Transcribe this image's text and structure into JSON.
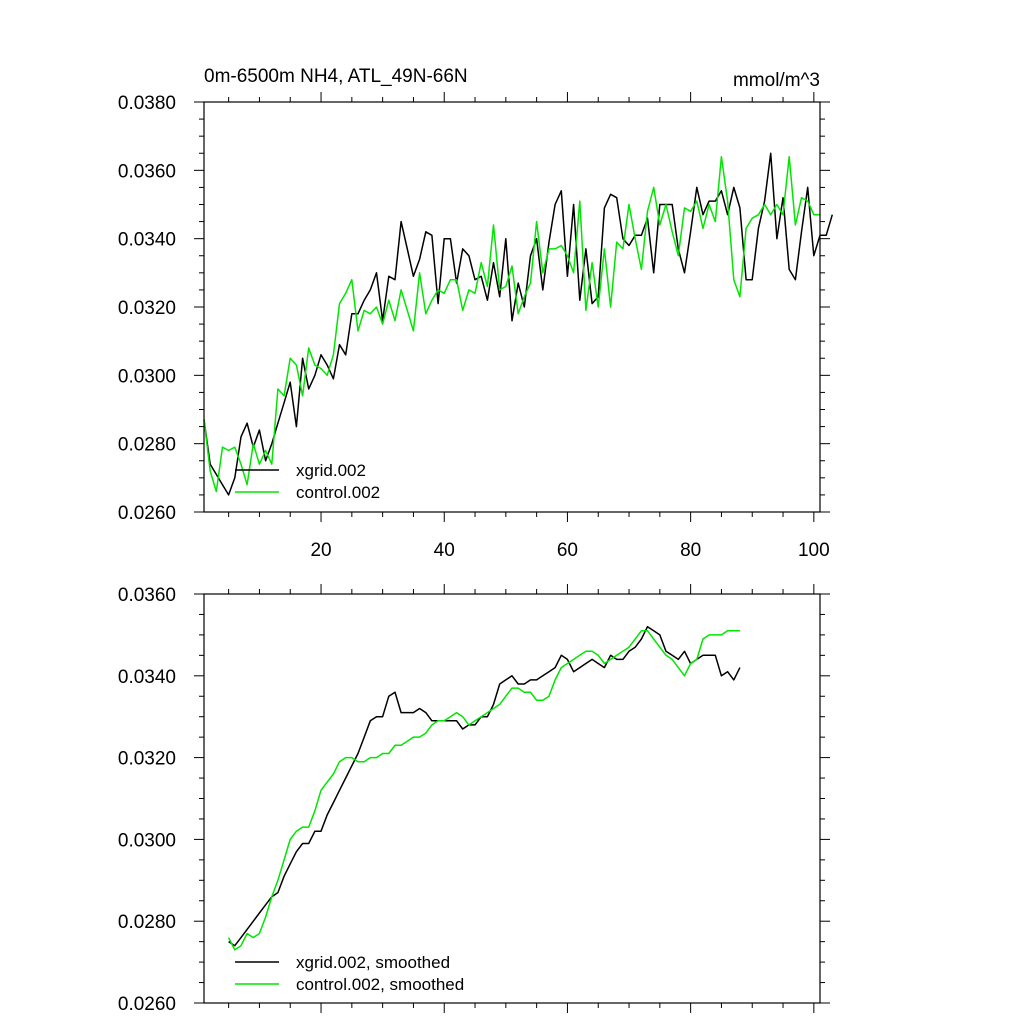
{
  "chart_data": [
    {
      "type": "line",
      "title": "0m-6500m NH4, ATL_49N-66N",
      "units": "mmol/m^3",
      "xlim": [
        1,
        101
      ],
      "ylim": [
        0.026,
        0.038
      ],
      "x_ticks": [
        20,
        40,
        60,
        80,
        100
      ],
      "x_tick_labels": [
        "20",
        "40",
        "60",
        "80",
        "100"
      ],
      "y_ticks": [
        0.026,
        0.028,
        0.03,
        0.032,
        0.034,
        0.036,
        0.038
      ],
      "y_tick_labels": [
        "0.0260",
        "0.0280",
        "0.0300",
        "0.0320",
        "0.0340",
        "0.0360",
        "0.0380"
      ],
      "legend_position": "bottom-left",
      "series": [
        {
          "name": "xgrid.002",
          "color": "#000000",
          "x_start": 1,
          "values": [
            0.0287,
            0.0274,
            0.0271,
            0.0268,
            0.0265,
            0.027,
            0.0282,
            0.0286,
            0.0279,
            0.0284,
            0.0275,
            0.028,
            0.0286,
            0.0292,
            0.0298,
            0.0285,
            0.0305,
            0.0296,
            0.03,
            0.0306,
            0.0303,
            0.0299,
            0.0309,
            0.0306,
            0.0318,
            0.0318,
            0.0322,
            0.0325,
            0.033,
            0.0316,
            0.0329,
            0.0328,
            0.0345,
            0.0337,
            0.0329,
            0.0334,
            0.0342,
            0.0341,
            0.0321,
            0.034,
            0.034,
            0.0327,
            0.0337,
            0.0335,
            0.0328,
            0.0329,
            0.0322,
            0.0333,
            0.0323,
            0.034,
            0.0316,
            0.0327,
            0.032,
            0.0335,
            0.034,
            0.0325,
            0.0339,
            0.035,
            0.0354,
            0.0329,
            0.035,
            0.0322,
            0.0337,
            0.0321,
            0.0323,
            0.0349,
            0.0353,
            0.0352,
            0.034,
            0.0338,
            0.0341,
            0.0341,
            0.0346,
            0.033,
            0.035,
            0.035,
            0.035,
            0.0337,
            0.033,
            0.0342,
            0.0355,
            0.0347,
            0.0351,
            0.0351,
            0.0354,
            0.0347,
            0.0355,
            0.0349,
            0.0328,
            0.0328,
            0.0343,
            0.0351,
            0.0365,
            0.034,
            0.0352,
            0.0331,
            0.0328,
            0.0342,
            0.0355,
            0.0335,
            0.0341,
            0.0341,
            0.0347
          ]
        },
        {
          "name": "control.002",
          "color": "#00e600",
          "x_start": 1,
          "values": [
            0.0287,
            0.0272,
            0.0266,
            0.0279,
            0.0278,
            0.0279,
            0.0274,
            0.0268,
            0.028,
            0.0274,
            0.0278,
            0.0274,
            0.0296,
            0.0294,
            0.0305,
            0.0303,
            0.0294,
            0.0308,
            0.0303,
            0.0302,
            0.03,
            0.0306,
            0.0321,
            0.0324,
            0.0328,
            0.0313,
            0.0319,
            0.0318,
            0.032,
            0.0315,
            0.0322,
            0.0316,
            0.0325,
            0.0319,
            0.0313,
            0.033,
            0.0318,
            0.0322,
            0.0325,
            0.0324,
            0.0328,
            0.0328,
            0.0319,
            0.0325,
            0.0324,
            0.0333,
            0.0326,
            0.0344,
            0.0325,
            0.0326,
            0.0332,
            0.0318,
            0.0323,
            0.0327,
            0.0345,
            0.033,
            0.0337,
            0.0337,
            0.0338,
            0.0335,
            0.033,
            0.0351,
            0.0319,
            0.0333,
            0.032,
            0.0337,
            0.032,
            0.0339,
            0.0337,
            0.035,
            0.034,
            0.0331,
            0.0348,
            0.0355,
            0.0344,
            0.035,
            0.0342,
            0.0335,
            0.0349,
            0.0348,
            0.0351,
            0.0343,
            0.035,
            0.0345,
            0.0364,
            0.0351,
            0.0328,
            0.0323,
            0.0343,
            0.0346,
            0.0347,
            0.035,
            0.0347,
            0.035,
            0.0347,
            0.0364,
            0.0344,
            0.0352,
            0.0351,
            0.0347,
            0.0347
          ]
        }
      ]
    },
    {
      "type": "line",
      "xlim": [
        1,
        101
      ],
      "ylim": [
        0.026,
        0.036
      ],
      "x_ticks": [
        20,
        40,
        60,
        80,
        100
      ],
      "y_ticks": [
        0.026,
        0.028,
        0.03,
        0.032,
        0.034,
        0.036
      ],
      "y_tick_labels": [
        "0.0260",
        "0.0280",
        "0.0300",
        "0.0320",
        "0.0340",
        "0.0360"
      ],
      "legend_position": "bottom-left",
      "series": [
        {
          "name": "xgrid.002, smoothed",
          "color": "#000000",
          "x_start": 5,
          "values": [
            0.0275,
            0.0274,
            0.0276,
            0.0278,
            0.028,
            0.0282,
            0.0284,
            0.0286,
            0.0287,
            0.0291,
            0.0294,
            0.0297,
            0.0299,
            0.0299,
            0.0302,
            0.0302,
            0.0306,
            0.0309,
            0.0312,
            0.0315,
            0.0318,
            0.0321,
            0.0325,
            0.0329,
            0.033,
            0.033,
            0.0335,
            0.0336,
            0.0331,
            0.0331,
            0.0331,
            0.0332,
            0.0331,
            0.0329,
            0.0329,
            0.0329,
            0.0329,
            0.0329,
            0.0327,
            0.0328,
            0.0328,
            0.033,
            0.033,
            0.0333,
            0.0338,
            0.0339,
            0.034,
            0.0338,
            0.0338,
            0.0339,
            0.0339,
            0.034,
            0.0341,
            0.0342,
            0.0345,
            0.0344,
            0.0341,
            0.0342,
            0.0343,
            0.0344,
            0.0343,
            0.0342,
            0.0345,
            0.0344,
            0.0344,
            0.0346,
            0.0347,
            0.0349,
            0.0352,
            0.0351,
            0.035,
            0.0346,
            0.0345,
            0.0344,
            0.0346,
            0.0343,
            0.0344,
            0.0345,
            0.0345,
            0.0345,
            0.034,
            0.0341,
            0.0339,
            0.0342
          ]
        },
        {
          "name": "control.002, smoothed",
          "color": "#00e600",
          "x_start": 5,
          "values": [
            0.0276,
            0.0273,
            0.0274,
            0.0277,
            0.0276,
            0.0277,
            0.0281,
            0.0286,
            0.029,
            0.0295,
            0.03,
            0.0302,
            0.0303,
            0.0303,
            0.0307,
            0.0312,
            0.0314,
            0.0316,
            0.0319,
            0.032,
            0.032,
            0.0319,
            0.0319,
            0.032,
            0.032,
            0.0321,
            0.0321,
            0.0323,
            0.0323,
            0.0324,
            0.0325,
            0.0325,
            0.0326,
            0.0328,
            0.0329,
            0.0329,
            0.033,
            0.0331,
            0.033,
            0.0328,
            0.0329,
            0.033,
            0.0331,
            0.0332,
            0.0333,
            0.0335,
            0.0337,
            0.0337,
            0.0336,
            0.0336,
            0.0334,
            0.0334,
            0.0335,
            0.0339,
            0.0342,
            0.0343,
            0.0344,
            0.0345,
            0.0346,
            0.0346,
            0.0345,
            0.0343,
            0.0344,
            0.0345,
            0.0346,
            0.0347,
            0.0349,
            0.0351,
            0.0351,
            0.0349,
            0.0347,
            0.0345,
            0.0344,
            0.0342,
            0.034,
            0.0343,
            0.0344,
            0.0349,
            0.035,
            0.035,
            0.035,
            0.0351,
            0.0351,
            0.0351
          ]
        }
      ]
    }
  ]
}
